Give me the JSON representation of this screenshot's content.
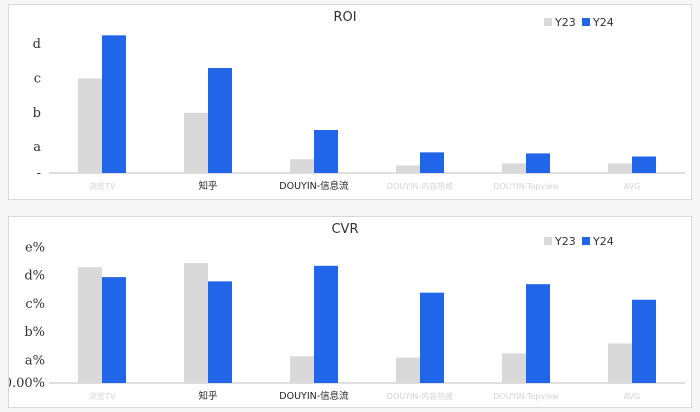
{
  "colors": {
    "y23": "#d9d9d9",
    "y24": "#2166e8",
    "axis": "#bfbfbf"
  },
  "chart_data": [
    {
      "type": "bar",
      "title": "ROI",
      "categories": [
        "浏览TV",
        "知乎",
        "DOUYIN-信息流",
        "DOUYIN-内容热推",
        "DOUYIN-Topview",
        "AVG"
      ],
      "category_blurred": [
        true,
        false,
        false,
        true,
        true,
        true
      ],
      "series": [
        {
          "name": "Y23",
          "values": [
            2.75,
            1.75,
            0.4,
            0.22,
            0.28,
            0.28
          ]
        },
        {
          "name": "Y24",
          "values": [
            4.0,
            3.05,
            1.25,
            0.6,
            0.57,
            0.48
          ]
        }
      ],
      "yticks": [
        {
          "label": "-",
          "value": 0
        },
        {
          "label": "a",
          "value": 0.75
        },
        {
          "label": "b",
          "value": 1.75
        },
        {
          "label": "c",
          "value": 2.75
        },
        {
          "label": "d",
          "value": 3.75
        }
      ],
      "ylim": [
        0,
        4.3
      ],
      "legend": "top-right",
      "grid": false
    },
    {
      "type": "bar",
      "title": "CVR",
      "categories": [
        "浏览TV",
        "知乎",
        "DOUYIN-信息流",
        "DOUYIN-内容热推",
        "DOUYIN-Topview",
        "AVG"
      ],
      "category_blurred": [
        true,
        false,
        false,
        true,
        true,
        true
      ],
      "series": [
        {
          "name": "Y23",
          "values": [
            4.1,
            4.25,
            0.95,
            0.9,
            1.05,
            1.4
          ]
        },
        {
          "name": "Y24",
          "values": [
            3.75,
            3.6,
            4.15,
            3.2,
            3.5,
            2.95
          ]
        }
      ],
      "yticks": [
        {
          "label": "0.00%",
          "value": 0
        },
        {
          "label": "a%",
          "value": 0.8
        },
        {
          "label": "b%",
          "value": 1.8
        },
        {
          "label": "c%",
          "value": 2.8
        },
        {
          "label": "d%",
          "value": 3.8
        },
        {
          "label": "e%",
          "value": 4.8
        }
      ],
      "ylim": [
        0,
        5.1
      ],
      "legend": "top-right",
      "grid": false
    }
  ]
}
